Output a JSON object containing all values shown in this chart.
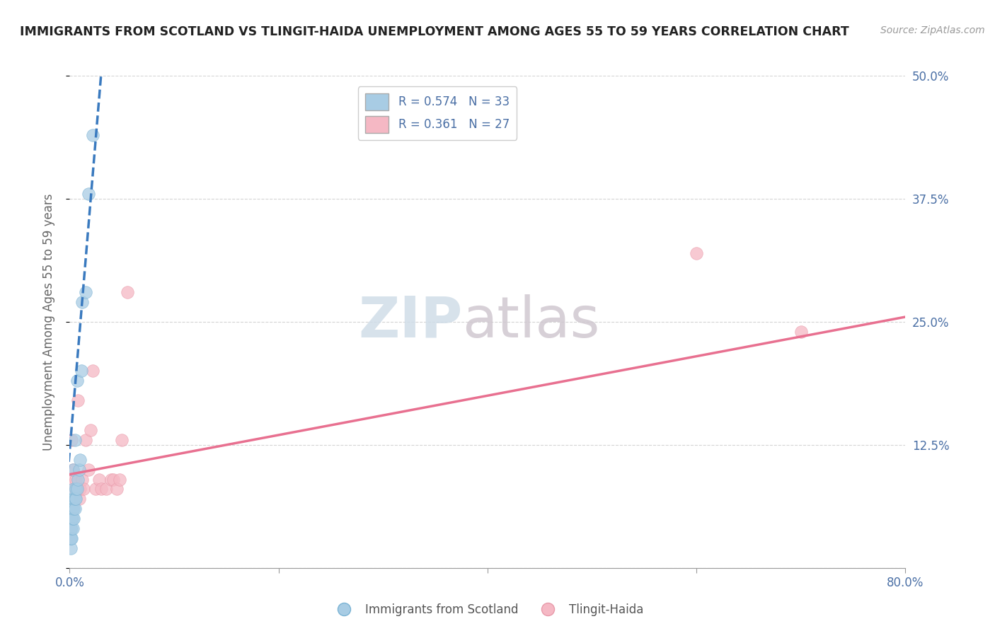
{
  "title": "IMMIGRANTS FROM SCOTLAND VS TLINGIT-HAIDA UNEMPLOYMENT AMONG AGES 55 TO 59 YEARS CORRELATION CHART",
  "source": "Source: ZipAtlas.com",
  "ylabel": "Unemployment Among Ages 55 to 59 years",
  "xlim": [
    0,
    0.8
  ],
  "ylim": [
    0,
    0.5
  ],
  "xticks": [
    0.0,
    0.2,
    0.4,
    0.6,
    0.8
  ],
  "xticklabels_bottom": [
    "0.0%",
    "",
    "",
    "",
    "80.0%"
  ],
  "yticks": [
    0.0,
    0.125,
    0.25,
    0.375,
    0.5
  ],
  "yticklabels_right": [
    "",
    "12.5%",
    "25.0%",
    "37.5%",
    "50.0%"
  ],
  "legend1_r": "0.574",
  "legend1_n": "33",
  "legend2_r": "0.361",
  "legend2_n": "27",
  "legend_bottom1": "Immigrants from Scotland",
  "legend_bottom2": "Tlingit-Haida",
  "blue_color": "#a8cce4",
  "blue_edge": "#7ab3d4",
  "blue_line_color": "#3a7abf",
  "pink_color": "#f5b8c4",
  "pink_edge": "#e89aaa",
  "pink_line_color": "#e87090",
  "blue_scatter_x": [
    0.001,
    0.001,
    0.001,
    0.001,
    0.002,
    0.002,
    0.002,
    0.002,
    0.002,
    0.003,
    0.003,
    0.003,
    0.003,
    0.003,
    0.004,
    0.004,
    0.004,
    0.004,
    0.005,
    0.005,
    0.005,
    0.006,
    0.006,
    0.007,
    0.007,
    0.008,
    0.009,
    0.01,
    0.011,
    0.012,
    0.015,
    0.018,
    0.022
  ],
  "blue_scatter_y": [
    0.02,
    0.03,
    0.03,
    0.04,
    0.03,
    0.04,
    0.05,
    0.05,
    0.06,
    0.04,
    0.05,
    0.06,
    0.07,
    0.1,
    0.05,
    0.06,
    0.07,
    0.08,
    0.06,
    0.07,
    0.13,
    0.07,
    0.08,
    0.08,
    0.19,
    0.09,
    0.1,
    0.11,
    0.2,
    0.27,
    0.28,
    0.38,
    0.44
  ],
  "pink_scatter_x": [
    0.002,
    0.003,
    0.004,
    0.005,
    0.006,
    0.007,
    0.008,
    0.009,
    0.01,
    0.012,
    0.013,
    0.015,
    0.018,
    0.02,
    0.022,
    0.025,
    0.028,
    0.03,
    0.035,
    0.04,
    0.042,
    0.045,
    0.048,
    0.05,
    0.055,
    0.6,
    0.7
  ],
  "pink_scatter_y": [
    0.13,
    0.1,
    0.09,
    0.08,
    0.09,
    0.08,
    0.17,
    0.07,
    0.08,
    0.09,
    0.08,
    0.13,
    0.1,
    0.14,
    0.2,
    0.08,
    0.09,
    0.08,
    0.08,
    0.09,
    0.09,
    0.08,
    0.09,
    0.13,
    0.28,
    0.32,
    0.24
  ],
  "blue_trend_x": [
    -0.005,
    0.03
  ],
  "blue_trend_y": [
    0.055,
    0.5
  ],
  "pink_trend_x": [
    0.0,
    0.8
  ],
  "pink_trend_y": [
    0.095,
    0.255
  ],
  "watermark_zip": "ZIP",
  "watermark_atlas": "atlas",
  "background_color": "#ffffff",
  "grid_color": "#d0d0d0",
  "text_color": "#4a6fa5",
  "axis_label_color": "#666666"
}
